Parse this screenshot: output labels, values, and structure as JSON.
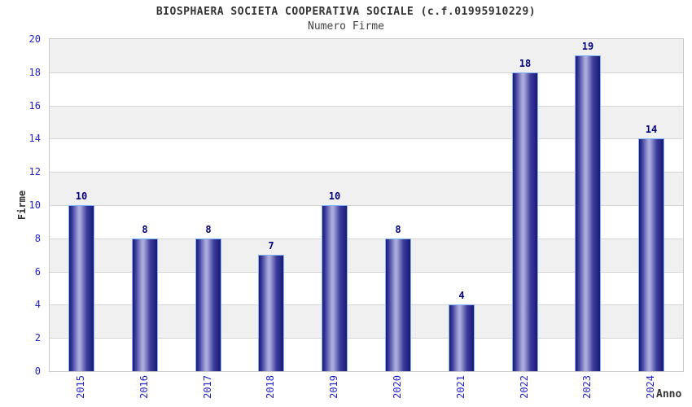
{
  "chart_data": {
    "type": "bar",
    "title": "BIOSPHAERA SOCIETA COOPERATIVA SOCIALE (c.f.01995910229)",
    "subtitle": "Numero Firme",
    "xlabel": "Anno",
    "ylabel": "Firme",
    "categories": [
      "2015",
      "2016",
      "2017",
      "2018",
      "2019",
      "2020",
      "2021",
      "2022",
      "2023",
      "2024"
    ],
    "values": [
      10,
      8,
      8,
      7,
      10,
      8,
      4,
      18,
      19,
      14
    ],
    "ylim": [
      0,
      20
    ],
    "ytick_step": 2,
    "yticks": [
      0,
      2,
      4,
      6,
      8,
      10,
      12,
      14,
      16,
      18,
      20
    ],
    "grid": "horizontal gridlines with alternating shaded bands every 2 units",
    "legend_position": "none",
    "colors": {
      "bar_dark": "#191974",
      "bar_mid": "#3c3c9c",
      "bar_light": "#aaaadc",
      "bar_border": "#7fb2f7",
      "axis_tick_label": "#2323cd",
      "value_label": "#00007e",
      "band_gray": "#f0f0f0",
      "band_white": "#ffffff",
      "gridline": "#d6d6d6",
      "plot_border": "#c9c9c9",
      "title_text": "#333333"
    }
  }
}
